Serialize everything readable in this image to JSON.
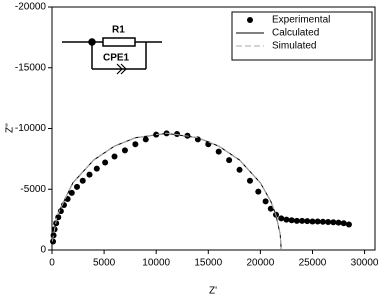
{
  "chart_data": {
    "type": "scatter",
    "xlabel": "Z'",
    "ylabel": "Z''",
    "xlim": [
      0,
      31000
    ],
    "xticks": [
      0,
      5000,
      10000,
      15000,
      20000,
      25000,
      30000
    ],
    "ylim": [
      0,
      -20000
    ],
    "yticks": [
      0,
      -5000,
      -10000,
      -15000,
      -20000
    ],
    "legend": "upper right",
    "annotations": [
      "R1",
      "CPE1"
    ],
    "series": [
      {
        "name": "Experimental",
        "color": "#000000",
        "style": "markers",
        "x": [
          100,
          150,
          250,
          400,
          600,
          850,
          1150,
          1500,
          1900,
          2400,
          2950,
          3600,
          4300,
          5100,
          6000,
          7000,
          8000,
          9000,
          10000,
          11000,
          12000,
          13000,
          14000,
          15000,
          16000,
          17000,
          18000,
          19000,
          19800,
          20500,
          21000,
          21500,
          22000,
          22500,
          23000,
          23500,
          24000,
          24500,
          25000,
          25500,
          26000,
          26500,
          27000,
          27500,
          28000,
          28500
        ],
        "values": [
          -700,
          -1200,
          -1700,
          -2200,
          -2700,
          -3200,
          -3700,
          -4200,
          -4700,
          -5200,
          -5700,
          -6200,
          -6700,
          -7200,
          -7700,
          -8200,
          -8700,
          -9100,
          -9500,
          -9600,
          -9550,
          -9400,
          -9100,
          -8700,
          -8100,
          -7400,
          -6600,
          -5700,
          -4800,
          -4000,
          -3400,
          -2900,
          -2600,
          -2500,
          -2450,
          -2400,
          -2400,
          -2380,
          -2350,
          -2350,
          -2320,
          -2300,
          -2280,
          -2250,
          -2200,
          -2100
        ]
      },
      {
        "name": "Calculated",
        "color": "#000000",
        "style": "solid",
        "x": [
          30,
          500,
          2000,
          4000,
          6000,
          8000,
          11000,
          14000,
          16000,
          18000,
          20000,
          21000,
          21500,
          21900,
          22000
        ],
        "values": [
          -709,
          -2862,
          -5522,
          -7405,
          -8551,
          -9236,
          -9600,
          -9236,
          -8551,
          -7405,
          -5522,
          -4004,
          -2862,
          -1291,
          0
        ]
      },
      {
        "name": "Simulated",
        "color": "#aaaaaa",
        "style": "dashed",
        "x": [
          30,
          500,
          2000,
          4000,
          6000,
          8000,
          11000,
          14000,
          16000,
          18000,
          20000,
          21000,
          21500,
          21900,
          22000
        ],
        "values": [
          -700,
          -2850,
          -5500,
          -7400,
          -8560,
          -9250,
          -9620,
          -9250,
          -8560,
          -7400,
          -5500,
          -4000,
          -2850,
          -1280,
          0
        ]
      }
    ]
  }
}
